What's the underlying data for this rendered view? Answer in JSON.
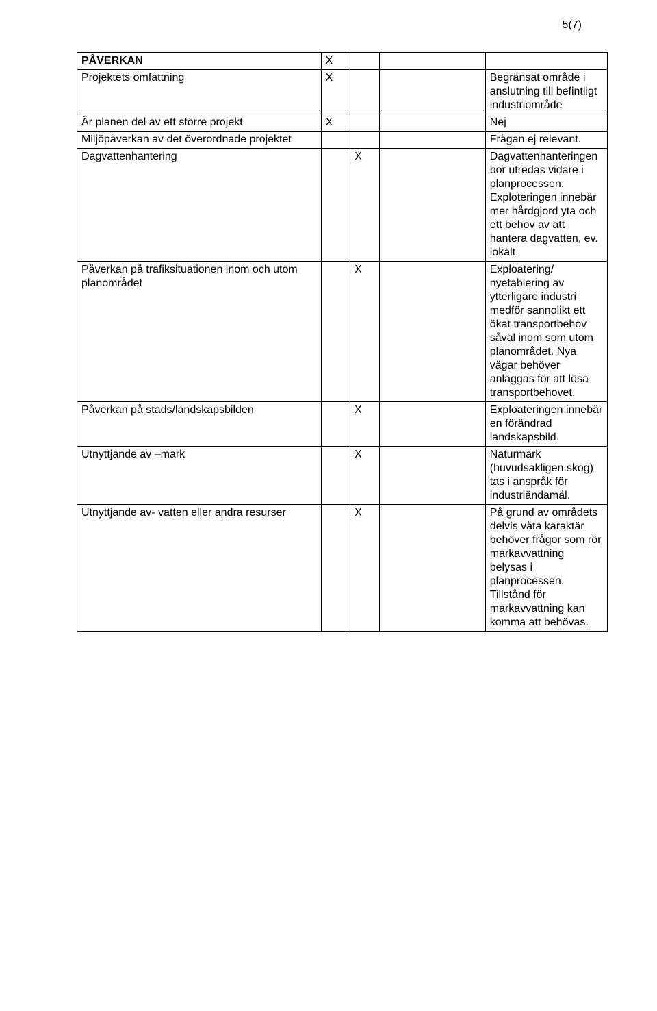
{
  "meta": {
    "page_number": "5(7)"
  },
  "table": {
    "section_header": "PÅVERKAN",
    "section_header_mark": "X",
    "rows": [
      {
        "label": "Projektets omfattning",
        "col2": "X",
        "col3": "",
        "col4": "",
        "comment": "Begränsat område i anslutning till befintligt industriområde"
      },
      {
        "label": "Är planen del av ett större projekt",
        "col2": "X",
        "col3": "",
        "col4": "",
        "comment": "Nej"
      },
      {
        "label": "Miljöpåverkan av det överordnade projektet",
        "col2": "",
        "col3": "",
        "col4": "",
        "comment": "Frågan ej relevant."
      },
      {
        "label": "Dagvattenhantering",
        "col2": "",
        "col3": "X",
        "col4": "",
        "comment": "Dagvattenhanteringen bör utredas vidare i planprocessen. Exploteringen innebär mer hårdgjord yta och ett behov av att hantera dagvatten, ev. lokalt."
      },
      {
        "label": "Påverkan på trafiksituationen inom och utom planområdet",
        "col2": "",
        "col3": "X",
        "col4": "",
        "comment": "Exploatering/ nyetablering av ytterligare industri medför sannolikt ett ökat transportbehov såväl inom som utom planområdet. Nya vägar behöver anläggas för att lösa transportbehovet."
      },
      {
        "label": "Påverkan på stads/landskapsbilden",
        "col2": "",
        "col3": "X",
        "col4": "",
        "comment": "Exploateringen innebär en förändrad landskapsbild."
      },
      {
        "label": "Utnyttjande av –mark",
        "col2": "",
        "col3": "X",
        "col4": "",
        "comment": "Naturmark (huvudsakligen skog) tas i anspråk för industriändamål."
      },
      {
        "label": "Utnyttjande av- vatten eller andra resurser",
        "col2": "",
        "col3": "X",
        "col4": "",
        "comment": "På grund av områdets delvis våta karaktär behöver frågor som rör markavvattning belysas i planprocessen. Tillstånd för markavvattning kan komma att behövas."
      }
    ]
  }
}
